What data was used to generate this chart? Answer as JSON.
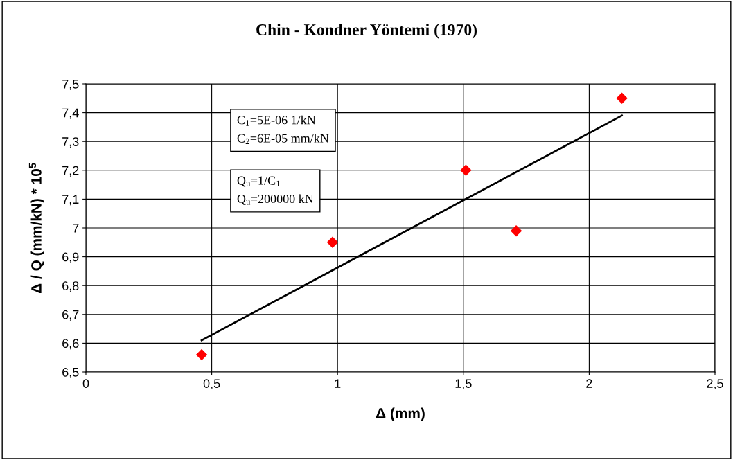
{
  "chart_data": {
    "type": "scatter",
    "title": "Chin - Kondner Yöntemi (1970)",
    "xlabel": "Δ (mm)",
    "ylabel": "Δ / Q (mm/kN) * 10$^{5}$",
    "series": [
      {
        "color": "#ff0000",
        "marker": "diamond",
        "x": [
          0.46,
          0.98,
          1.51,
          1.71,
          2.13
        ],
        "values": [
          6.56,
          6.95,
          7.2,
          6.99,
          7.45
        ]
      },
      {
        "type": "line",
        "color": "#000000",
        "marker": "none",
        "line_style": "solid",
        "x": [
          0.46,
          2.13
        ],
        "values": [
          6.61,
          7.39
        ]
      }
    ],
    "xlim": [
      0,
      2.5
    ],
    "xticks": [
      0,
      {
        "value": 0.5,
        "label": "0,5"
      },
      1,
      {
        "value": 1.5,
        "label": "1,5"
      },
      2,
      {
        "value": 2.5,
        "label": "2,5"
      }
    ],
    "ylim": [
      6.5,
      7.5
    ],
    "yticks": [
      {
        "value": 6.5,
        "label": "6,5"
      },
      {
        "value": 6.6,
        "label": "6,6"
      },
      {
        "value": 6.7,
        "label": "6,7"
      },
      {
        "value": 6.8,
        "label": "6,8"
      },
      {
        "value": 6.9,
        "label": "6,9"
      },
      7,
      {
        "value": 7.1,
        "label": "7,1"
      },
      {
        "value": 7.2,
        "label": "7,2"
      },
      {
        "value": 7.3,
        "label": "7,3"
      },
      {
        "value": 7.4,
        "label": "7,4"
      },
      {
        "value": 7.5,
        "label": "7,5"
      }
    ],
    "grid": true,
    "legend": false,
    "annotations": [
      "C$_{1}$=5E-06 1/kN\nC$_{2}$=6E-05 mm/kN",
      "Q$_{u}$=1/C$_{1}$\nQ$_{u}$=200000 kN"
    ]
  }
}
